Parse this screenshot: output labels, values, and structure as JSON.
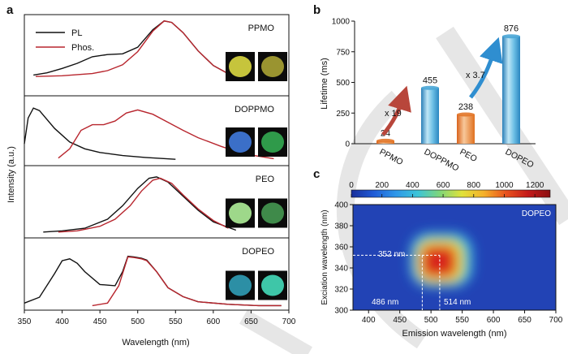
{
  "panel_labels": {
    "a": "a",
    "b": "b",
    "c": "c"
  },
  "watermark_color": "#c8c8c8",
  "chart_data": [
    {
      "id": "a",
      "type": "line",
      "xlabel": "Wavelength (nm)",
      "ylabel": "Intensity (a.u.)",
      "xlim": [
        350,
        700
      ],
      "xticks": [
        350,
        400,
        450,
        500,
        550,
        600,
        650,
        700
      ],
      "legend": {
        "placement": "top-left",
        "entries": [
          {
            "label": "PL",
            "color": "#111111"
          },
          {
            "label": "Phos.",
            "color": "#b8262e"
          }
        ]
      },
      "subplots": [
        {
          "label": "PPMO",
          "photo_colors": [
            "#c6c43c",
            "#9a9430"
          ],
          "series": [
            {
              "name": "PL",
              "color": "#111111",
              "x": [
                362,
                380,
                400,
                420,
                440,
                460,
                480,
                500,
                520,
                535,
                545,
                560,
                580,
                600,
                630
              ],
              "y": [
                0.24,
                0.27,
                0.33,
                0.4,
                0.49,
                0.52,
                0.53,
                0.62,
                0.86,
                0.98,
                0.96,
                0.82,
                0.57,
                0.37,
                0.2
              ]
            },
            {
              "name": "Phos.",
              "color": "#b8262e",
              "x": [
                365,
                400,
                440,
                460,
                480,
                500,
                520,
                535,
                545,
                560,
                580,
                600,
                630
              ],
              "y": [
                0.22,
                0.23,
                0.26,
                0.3,
                0.38,
                0.56,
                0.84,
                0.98,
                0.96,
                0.82,
                0.57,
                0.37,
                0.2
              ]
            }
          ]
        },
        {
          "label": "DOPPMO",
          "photo_colors": [
            "#3b6fc8",
            "#2f9a4a"
          ],
          "series": [
            {
              "name": "PL",
              "color": "#111111",
              "x": [
                350,
                355,
                362,
                370,
                390,
                410,
                430,
                450,
                480,
                510,
                550
              ],
              "y": [
                0.3,
                0.72,
                0.88,
                0.84,
                0.55,
                0.33,
                0.22,
                0.16,
                0.11,
                0.08,
                0.05
              ]
            },
            {
              "name": "Phos.",
              "color": "#b8262e",
              "x": [
                395,
                410,
                425,
                440,
                455,
                470,
                485,
                500,
                520,
                540,
                560,
                580,
                610,
                640,
                680
              ],
              "y": [
                0.07,
                0.22,
                0.52,
                0.61,
                0.61,
                0.67,
                0.8,
                0.85,
                0.78,
                0.65,
                0.52,
                0.4,
                0.26,
                0.14,
                0.06
              ]
            }
          ]
        },
        {
          "label": "PEO",
          "photo_colors": [
            "#9ed88a",
            "#3f8a4a"
          ],
          "series": [
            {
              "name": "PL",
              "color": "#111111",
              "x": [
                375,
                400,
                430,
                460,
                480,
                500,
                515,
                525,
                540,
                560,
                580,
                600,
                630
              ],
              "y": [
                0.04,
                0.06,
                0.1,
                0.24,
                0.45,
                0.72,
                0.88,
                0.9,
                0.82,
                0.6,
                0.38,
                0.2,
                0.07
              ]
            },
            {
              "name": "Phos.",
              "color": "#b8262e",
              "x": [
                395,
                420,
                450,
                470,
                490,
                505,
                520,
                530,
                545,
                560,
                580,
                600,
                620
              ],
              "y": [
                0.04,
                0.06,
                0.13,
                0.24,
                0.45,
                0.68,
                0.85,
                0.88,
                0.8,
                0.62,
                0.4,
                0.22,
                0.1
              ]
            }
          ]
        },
        {
          "label": "DOPEO",
          "photo_colors": [
            "#2c8fa5",
            "#3ec6a8"
          ],
          "series": [
            {
              "name": "PL",
              "color": "#111111",
              "x": [
                350,
                370,
                390,
                400,
                410,
                420,
                430,
                450,
                470,
                480,
                487,
                495,
                505,
                512,
                525,
                540,
                560,
                580,
                620,
                660,
                690
              ],
              "y": [
                0.06,
                0.15,
                0.52,
                0.72,
                0.75,
                0.68,
                0.55,
                0.35,
                0.33,
                0.55,
                0.79,
                0.78,
                0.76,
                0.73,
                0.55,
                0.3,
                0.16,
                0.08,
                0.04,
                0.02,
                0.02
              ]
            },
            {
              "name": "Phos.",
              "color": "#b8262e",
              "x": [
                440,
                460,
                475,
                487,
                495,
                505,
                512,
                525,
                540,
                560,
                580,
                620,
                660,
                690
              ],
              "y": [
                0.02,
                0.06,
                0.33,
                0.78,
                0.77,
                0.75,
                0.72,
                0.55,
                0.3,
                0.16,
                0.08,
                0.04,
                0.02,
                0.02
              ]
            }
          ]
        }
      ]
    },
    {
      "id": "b",
      "type": "bar",
      "ylabel": "Lifetime (ms)",
      "ylim": [
        0,
        1000
      ],
      "yticks": [
        0,
        250,
        500,
        750,
        1000
      ],
      "categories": [
        "PPMO",
        "DOPPMO",
        "PEO",
        "DOPEO"
      ],
      "values": [
        24,
        455,
        238,
        876
      ],
      "bar_colors": [
        "#e2772a",
        "#4aa6d6",
        "#e2772a",
        "#4aa6d6"
      ],
      "value_labels": [
        "24",
        "455",
        "238",
        "876"
      ],
      "annotations": [
        {
          "text": "x 19",
          "color": "#b8463b"
        },
        {
          "text": "x 3.7",
          "color": "#2f8ed0"
        }
      ]
    },
    {
      "id": "c",
      "type": "heatmap",
      "label": "DOPEO",
      "xlabel": "Emission wavelength (nm)",
      "ylabel": "Exciation wavelength (nm)",
      "xlim": [
        375,
        700
      ],
      "xticks": [
        400,
        450,
        500,
        550,
        600,
        650,
        700
      ],
      "ylim": [
        300,
        400
      ],
      "yticks": [
        300,
        320,
        340,
        360,
        380,
        400
      ],
      "colorbar": {
        "min": 0,
        "max": 1300,
        "ticks": [
          0,
          200,
          400,
          600,
          800,
          1000,
          1200
        ],
        "colors": [
          "#1a2f9a",
          "#1f5ad6",
          "#2e96e8",
          "#3cc4d8",
          "#7fd67a",
          "#e0e23a",
          "#f5b02a",
          "#e8521e",
          "#c41a1a",
          "#8a0e10"
        ]
      },
      "peak": {
        "excitation": 352,
        "emission_left": 486,
        "emission_right": 514
      },
      "annotations": [
        "352 nm",
        "486 nm",
        "514 nm"
      ]
    }
  ]
}
